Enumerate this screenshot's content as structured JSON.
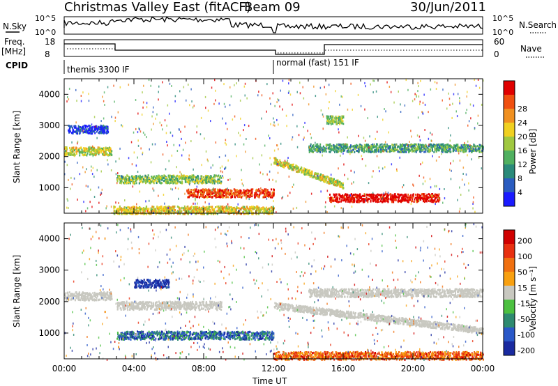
{
  "header": {
    "station": "Christmas Valley East (fitACF)",
    "beam": "Beam 09",
    "date": "30/Jun/2011"
  },
  "top_panels": {
    "nsky_label": "N.Sky",
    "nsky_ticks": [
      "10^5",
      "10^0"
    ],
    "nsearch_label": "N.Search",
    "nsearch_ticks": [
      "10^5",
      "10^0"
    ],
    "freq_label": "Freq.",
    "freq_unit": "[MHz]",
    "freq_ticks": [
      "18",
      "8"
    ],
    "nave_label": "Nave",
    "nave_ticks": [
      "60",
      "0"
    ],
    "cpid_label": "CPID",
    "cpid_segments": [
      "themis 3300 IF",
      "normal (fast) 151 IF"
    ]
  },
  "chart_data": [
    {
      "type": "heatmap",
      "title": "",
      "xlabel": "",
      "ylabel": "Slant Range [km]",
      "x_ticks": [
        "00:00",
        "04:00",
        "08:00",
        "12:00",
        "16:00",
        "20:00",
        "00:00"
      ],
      "y_ticks": [
        "1000",
        "2000",
        "3000",
        "4000"
      ],
      "xlim": [
        0,
        24
      ],
      "ylim": [
        180,
        4500
      ],
      "colorbar": {
        "label": "Power [dB]",
        "ticks": [
          "4",
          "8",
          "12",
          "16",
          "20",
          "24",
          "28"
        ],
        "colors": [
          "#1a1aff",
          "#2a5cc0",
          "#2a8a7a",
          "#50b060",
          "#a0c840",
          "#f0d020",
          "#f09020",
          "#f05010",
          "#e00000"
        ]
      },
      "structures": [
        {
          "t0": 0.0,
          "t1": 2.7,
          "range": 2200,
          "level": 0.55
        },
        {
          "t0": 0.2,
          "t1": 2.5,
          "range": 2900,
          "level": 0.1
        },
        {
          "t0": 3.0,
          "t1": 9.0,
          "range": 1300,
          "level": 0.45
        },
        {
          "t0": 7.0,
          "t1": 12.0,
          "range": 850,
          "level": 0.85
        },
        {
          "t0": 2.8,
          "t1": 12.0,
          "range": 300,
          "level": 0.6
        },
        {
          "t0": 12.0,
          "t1": 16.0,
          "range": 1500,
          "level": 0.55
        },
        {
          "t0": 15.2,
          "t1": 21.5,
          "range": 700,
          "level": 0.98
        },
        {
          "t0": 14.0,
          "t1": 24.0,
          "range": 2300,
          "level": 0.35
        },
        {
          "t0": 15.0,
          "t1": 16.0,
          "range": 3200,
          "level": 0.45
        }
      ]
    },
    {
      "type": "heatmap",
      "title": "",
      "xlabel": "Time UT",
      "ylabel": "Slant Range [km]",
      "x_ticks": [
        "00:00",
        "04:00",
        "08:00",
        "12:00",
        "16:00",
        "20:00",
        "00:00"
      ],
      "y_ticks": [
        "1000",
        "2000",
        "3000",
        "4000"
      ],
      "xlim": [
        0,
        24
      ],
      "ylim": [
        180,
        4500
      ],
      "colorbar": {
        "label": "Velocity [m s⁻¹]",
        "ticks": [
          "200",
          "100",
          "50",
          "15",
          "-15",
          "-50",
          "-100",
          "-200"
        ],
        "colors": [
          "#1a2aa0",
          "#2a58c8",
          "#2e8a70",
          "#4cc040",
          "#c8c8c0",
          "#f8a010",
          "#f07010",
          "#e83010",
          "#d00000"
        ]
      },
      "structures": [
        {
          "t0": 0.0,
          "t1": 2.7,
          "range": 2200,
          "level": 0.5
        },
        {
          "t0": 3.0,
          "t1": 9.0,
          "range": 1900,
          "level": 0.5
        },
        {
          "t0": 3.0,
          "t1": 12.0,
          "range": 950,
          "level": 0.2
        },
        {
          "t0": 4.0,
          "t1": 6.0,
          "range": 2600,
          "level": 0.05
        },
        {
          "t0": 12.0,
          "t1": 24.0,
          "range": 1400,
          "level": 0.5
        },
        {
          "t0": 12.0,
          "t1": 24.0,
          "range": 300,
          "level": 0.75
        },
        {
          "t0": 14.0,
          "t1": 24.0,
          "range": 2300,
          "level": 0.5
        }
      ]
    }
  ]
}
